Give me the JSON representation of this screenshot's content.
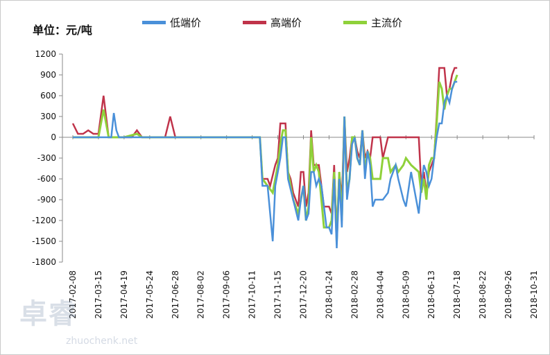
{
  "chart_data": {
    "type": "line",
    "unit_label": "单位：元/吨",
    "ylim": [
      -1800,
      1200
    ],
    "y_ticks": [
      1200,
      900,
      600,
      300,
      0,
      -300,
      -600,
      -900,
      -1200,
      -1500,
      -1800
    ],
    "x_tick_labels": [
      "2017-02-08",
      "2017-03-15",
      "2017-04-19",
      "2017-05-24",
      "2017-06-28",
      "2017-08-02",
      "2017-09-06",
      "2017-10-11",
      "2017-11-15",
      "2017-12-20",
      "2018-01-24",
      "2018-02-28",
      "2018-04-04",
      "2018-05-09",
      "2018-06-13",
      "2018-07-18",
      "2018-08-22",
      "2018-09-26",
      "2018-10-31"
    ],
    "grid": false,
    "legend_position": "top",
    "colors": {
      "low": "#4a90d9",
      "high": "#c0334a",
      "main": "#8fd13a"
    },
    "series": [
      {
        "name": "低端价",
        "key": "low",
        "points": [
          [
            0,
            0
          ],
          [
            1.2,
            0
          ],
          [
            1.5,
            0
          ],
          [
            1.6,
            350
          ],
          [
            1.7,
            100
          ],
          [
            1.8,
            0
          ],
          [
            2.5,
            0
          ],
          [
            3.0,
            0
          ],
          [
            3.5,
            0
          ],
          [
            4.0,
            0
          ],
          [
            7.0,
            0
          ],
          [
            7.3,
            0
          ],
          [
            7.4,
            -700
          ],
          [
            7.6,
            -700
          ],
          [
            7.8,
            -1500
          ],
          [
            7.9,
            -700
          ],
          [
            8.0,
            -500
          ],
          [
            8.1,
            -300
          ],
          [
            8.2,
            0
          ],
          [
            8.3,
            0
          ],
          [
            8.4,
            -600
          ],
          [
            8.6,
            -900
          ],
          [
            8.8,
            -1200
          ],
          [
            8.9,
            -900
          ],
          [
            9.0,
            -700
          ],
          [
            9.1,
            -1200
          ],
          [
            9.2,
            -1100
          ],
          [
            9.3,
            -500
          ],
          [
            9.4,
            -500
          ],
          [
            9.5,
            -700
          ],
          [
            9.6,
            -600
          ],
          [
            9.7,
            -700
          ],
          [
            9.9,
            -1300
          ],
          [
            10.0,
            -1300
          ],
          [
            10.1,
            -1400
          ],
          [
            10.2,
            -600
          ],
          [
            10.3,
            -1600
          ],
          [
            10.4,
            -600
          ],
          [
            10.5,
            -1300
          ],
          [
            10.6,
            300
          ],
          [
            10.7,
            -900
          ],
          [
            10.8,
            -600
          ],
          [
            10.9,
            -100
          ],
          [
            11.0,
            0
          ],
          [
            11.1,
            -300
          ],
          [
            11.2,
            -400
          ],
          [
            11.3,
            100
          ],
          [
            11.4,
            -600
          ],
          [
            11.5,
            -200
          ],
          [
            11.6,
            -400
          ],
          [
            11.7,
            -1000
          ],
          [
            11.8,
            -900
          ],
          [
            12.0,
            -900
          ],
          [
            12.1,
            -900
          ],
          [
            12.3,
            -800
          ],
          [
            12.4,
            -600
          ],
          [
            12.6,
            -400
          ],
          [
            12.7,
            -600
          ],
          [
            12.9,
            -900
          ],
          [
            13.0,
            -1000
          ],
          [
            13.2,
            -500
          ],
          [
            13.5,
            -1100
          ],
          [
            13.6,
            -700
          ],
          [
            13.7,
            -400
          ],
          [
            13.8,
            -500
          ],
          [
            13.9,
            -700
          ],
          [
            14.0,
            -600
          ],
          [
            14.1,
            -300
          ],
          [
            14.2,
            0
          ],
          [
            14.3,
            200
          ],
          [
            14.4,
            200
          ],
          [
            14.5,
            500
          ],
          [
            14.6,
            600
          ],
          [
            14.7,
            500
          ],
          [
            14.8,
            700
          ],
          [
            14.9,
            800
          ],
          [
            15.0,
            800
          ]
        ]
      },
      {
        "name": "高端价",
        "key": "high",
        "points": [
          [
            0,
            200
          ],
          [
            0.2,
            50
          ],
          [
            0.4,
            50
          ],
          [
            0.6,
            100
          ],
          [
            0.8,
            50
          ],
          [
            1.0,
            50
          ],
          [
            1.2,
            600
          ],
          [
            1.4,
            0
          ],
          [
            2.0,
            0
          ],
          [
            2.3,
            0
          ],
          [
            2.5,
            100
          ],
          [
            2.7,
            0
          ],
          [
            3.6,
            0
          ],
          [
            3.8,
            300
          ],
          [
            4.0,
            0
          ],
          [
            7.0,
            0
          ],
          [
            7.2,
            0
          ],
          [
            7.3,
            0
          ],
          [
            7.4,
            -600
          ],
          [
            7.6,
            -600
          ],
          [
            7.7,
            -700
          ],
          [
            7.9,
            -400
          ],
          [
            8.0,
            -300
          ],
          [
            8.1,
            200
          ],
          [
            8.2,
            200
          ],
          [
            8.3,
            200
          ],
          [
            8.4,
            -500
          ],
          [
            8.5,
            -600
          ],
          [
            8.6,
            -800
          ],
          [
            8.8,
            -1000
          ],
          [
            8.9,
            -500
          ],
          [
            9.0,
            -500
          ],
          [
            9.1,
            -1000
          ],
          [
            9.2,
            -800
          ],
          [
            9.3,
            100
          ],
          [
            9.4,
            -400
          ],
          [
            9.5,
            -400
          ],
          [
            9.6,
            -400
          ],
          [
            9.8,
            -1000
          ],
          [
            10.0,
            -1000
          ],
          [
            10.1,
            -1100
          ],
          [
            10.2,
            -400
          ],
          [
            10.3,
            -1400
          ],
          [
            10.4,
            -500
          ],
          [
            10.5,
            -900
          ],
          [
            10.6,
            300
          ],
          [
            10.7,
            -500
          ],
          [
            10.8,
            -300
          ],
          [
            10.9,
            0
          ],
          [
            11.0,
            0
          ],
          [
            11.1,
            -200
          ],
          [
            11.2,
            -300
          ],
          [
            11.3,
            100
          ],
          [
            11.4,
            -300
          ],
          [
            11.5,
            -200
          ],
          [
            11.6,
            -300
          ],
          [
            11.7,
            0
          ],
          [
            11.8,
            0
          ],
          [
            12.0,
            0
          ],
          [
            12.1,
            -300
          ],
          [
            12.3,
            0
          ],
          [
            12.5,
            0
          ],
          [
            12.7,
            0
          ],
          [
            12.9,
            0
          ],
          [
            13.0,
            0
          ],
          [
            13.5,
            0
          ],
          [
            13.6,
            -700
          ],
          [
            13.7,
            -500
          ],
          [
            13.8,
            -800
          ],
          [
            13.9,
            -500
          ],
          [
            14.0,
            -400
          ],
          [
            14.1,
            -300
          ],
          [
            14.2,
            300
          ],
          [
            14.3,
            1000
          ],
          [
            14.5,
            1000
          ],
          [
            14.6,
            600
          ],
          [
            14.7,
            700
          ],
          [
            14.8,
            900
          ],
          [
            14.9,
            1000
          ],
          [
            15.0,
            1000
          ]
        ]
      },
      {
        "name": "主流价",
        "key": "main",
        "points": [
          [
            0,
            0
          ],
          [
            1.0,
            0
          ],
          [
            1.2,
            400
          ],
          [
            1.3,
            200
          ],
          [
            1.4,
            0
          ],
          [
            2.0,
            0
          ],
          [
            2.5,
            50
          ],
          [
            2.7,
            0
          ],
          [
            4.0,
            0
          ],
          [
            7.0,
            0
          ],
          [
            7.3,
            0
          ],
          [
            7.4,
            -600
          ],
          [
            7.6,
            -700
          ],
          [
            7.8,
            -800
          ],
          [
            7.9,
            -600
          ],
          [
            8.0,
            -400
          ],
          [
            8.1,
            -100
          ],
          [
            8.2,
            100
          ],
          [
            8.3,
            100
          ],
          [
            8.4,
            -500
          ],
          [
            8.5,
            -700
          ],
          [
            8.6,
            -900
          ],
          [
            8.8,
            -1100
          ],
          [
            8.9,
            -900
          ],
          [
            9.0,
            -700
          ],
          [
            9.1,
            -1200
          ],
          [
            9.2,
            -1000
          ],
          [
            9.3,
            0
          ],
          [
            9.4,
            -500
          ],
          [
            9.5,
            -400
          ],
          [
            9.6,
            -500
          ],
          [
            9.8,
            -1300
          ],
          [
            10.0,
            -1300
          ],
          [
            10.1,
            -1200
          ],
          [
            10.2,
            -500
          ],
          [
            10.3,
            -1500
          ],
          [
            10.4,
            -500
          ],
          [
            10.5,
            -1200
          ],
          [
            10.6,
            300
          ],
          [
            10.7,
            -800
          ],
          [
            10.8,
            -600
          ],
          [
            10.9,
            0
          ],
          [
            11.0,
            0
          ],
          [
            11.1,
            -300
          ],
          [
            11.2,
            -400
          ],
          [
            11.3,
            100
          ],
          [
            11.4,
            -500
          ],
          [
            11.5,
            -200
          ],
          [
            11.6,
            -300
          ],
          [
            11.7,
            -600
          ],
          [
            11.8,
            -600
          ],
          [
            12.0,
            -600
          ],
          [
            12.1,
            -300
          ],
          [
            12.3,
            -300
          ],
          [
            12.4,
            -500
          ],
          [
            12.6,
            -400
          ],
          [
            12.7,
            -500
          ],
          [
            12.9,
            -400
          ],
          [
            13.0,
            -300
          ],
          [
            13.2,
            -400
          ],
          [
            13.5,
            -500
          ],
          [
            13.6,
            -800
          ],
          [
            13.7,
            -600
          ],
          [
            13.8,
            -900
          ],
          [
            13.9,
            -400
          ],
          [
            14.0,
            -300
          ],
          [
            14.1,
            -300
          ],
          [
            14.2,
            200
          ],
          [
            14.3,
            800
          ],
          [
            14.4,
            700
          ],
          [
            14.5,
            400
          ],
          [
            14.6,
            600
          ],
          [
            14.7,
            700
          ],
          [
            14.8,
            700
          ],
          [
            14.9,
            800
          ],
          [
            15.0,
            900
          ]
        ]
      }
    ]
  },
  "watermark": {
    "main": "卓睿",
    "sub": "zhuochenk.net"
  }
}
